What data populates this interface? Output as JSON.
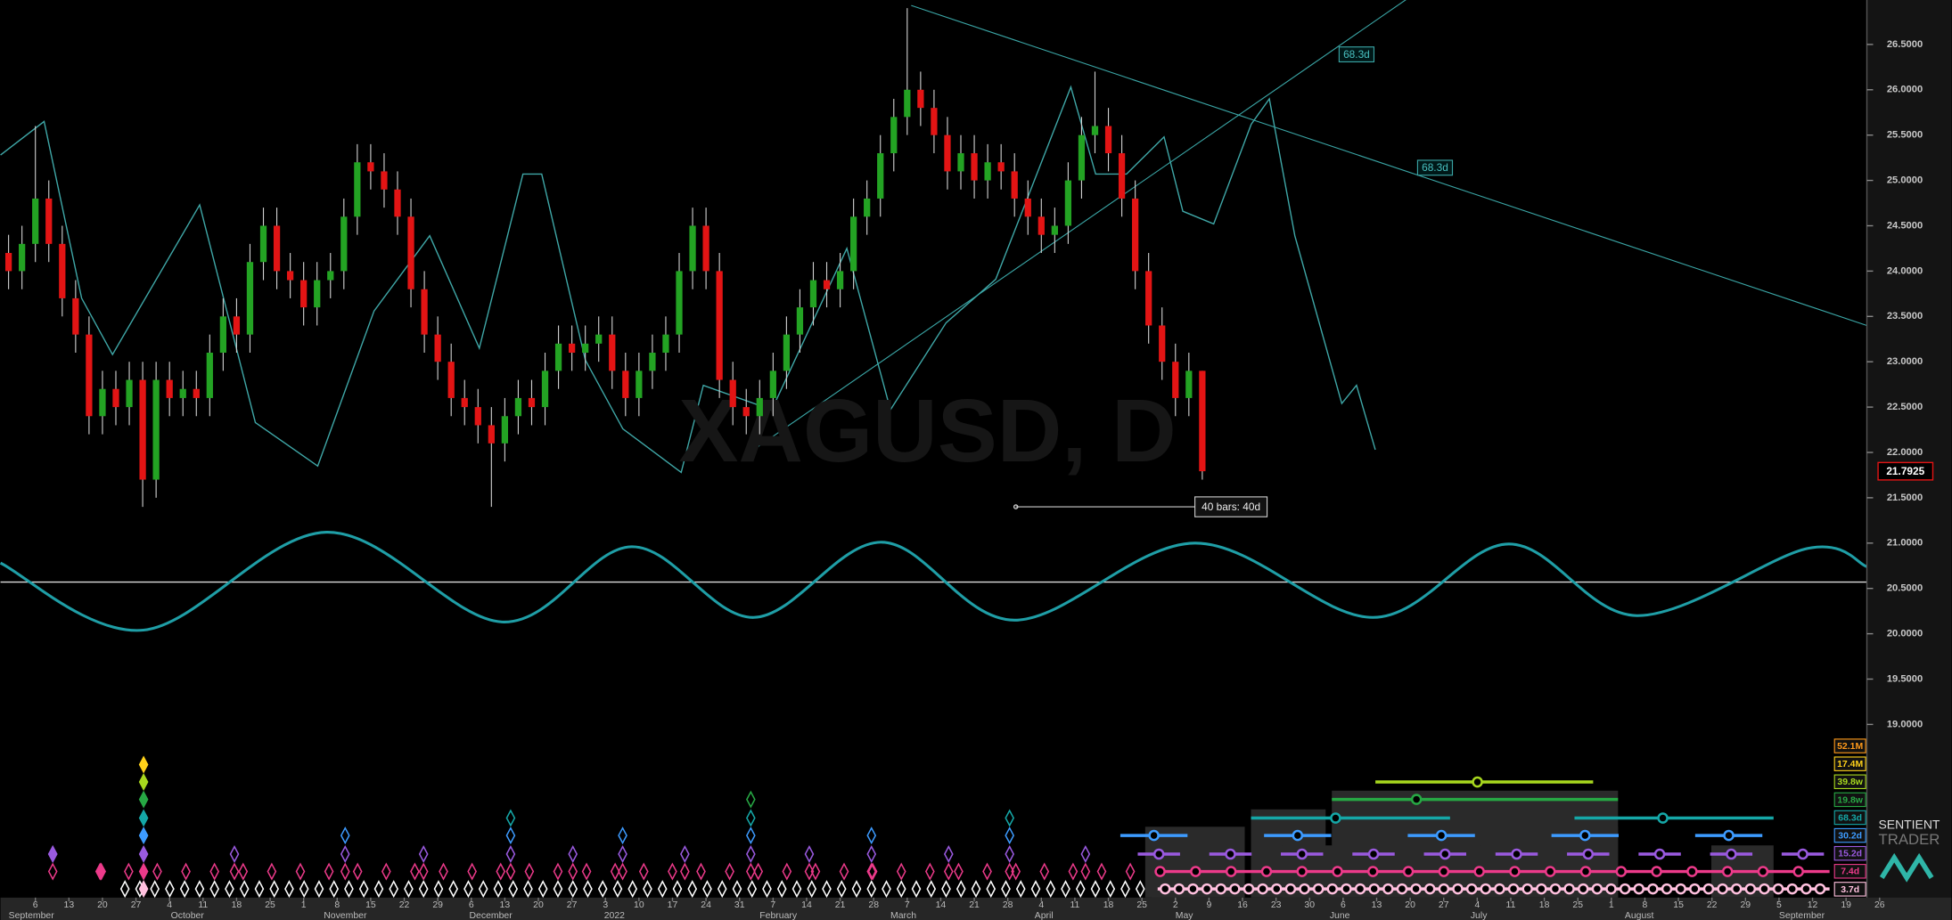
{
  "chart_data": {
    "type": "candlestick",
    "title": "XAGUSD, D",
    "up_color": "#23a323",
    "down_color": "#e31414",
    "x": [
      -4,
      -2,
      0,
      2,
      4,
      6,
      8,
      10,
      12,
      14,
      16,
      18,
      20,
      22,
      24,
      26,
      28,
      30,
      32,
      34,
      36,
      38,
      40,
      42,
      44,
      46,
      48,
      50,
      52,
      54,
      56,
      58,
      60,
      62,
      64,
      66,
      68,
      70,
      72,
      74,
      76,
      78,
      80,
      82,
      84,
      86,
      88,
      90,
      92,
      94,
      96,
      98,
      100,
      102,
      104,
      106,
      108,
      110,
      112,
      114,
      116,
      118,
      120,
      122,
      124,
      126,
      128,
      130,
      132,
      134,
      136,
      138,
      140,
      142,
      144,
      146,
      148,
      150,
      152,
      154,
      156,
      158,
      160,
      162,
      164,
      166,
      168,
      170,
      172,
      174
    ],
    "open": [
      24.2,
      24.0,
      24.3,
      24.8,
      24.3,
      23.7,
      23.3,
      22.4,
      22.7,
      22.5,
      22.8,
      21.7,
      22.8,
      22.6,
      22.7,
      22.6,
      23.1,
      23.5,
      23.3,
      24.1,
      24.5,
      24.0,
      23.9,
      23.6,
      23.9,
      24.0,
      24.6,
      25.2,
      25.1,
      24.9,
      24.6,
      23.8,
      23.3,
      23.0,
      22.6,
      22.5,
      22.3,
      22.1,
      22.4,
      22.6,
      22.5,
      22.9,
      23.2,
      23.1,
      23.2,
      23.3,
      22.9,
      22.6,
      22.9,
      23.1,
      23.3,
      24.0,
      24.5,
      24.0,
      22.8,
      22.5,
      22.4,
      22.6,
      22.9,
      23.3,
      23.6,
      23.9,
      23.8,
      24.0,
      24.6,
      24.8,
      25.3,
      25.7,
      26.0,
      25.8,
      25.5,
      25.1,
      25.3,
      25.0,
      25.2,
      25.1,
      24.8,
      24.6,
      24.4,
      24.5,
      25.0,
      25.5,
      25.6,
      25.3,
      24.8,
      24.0,
      23.4,
      23.0,
      22.6,
      22.9
    ],
    "high": [
      24.4,
      24.5,
      25.6,
      25.0,
      24.5,
      23.9,
      23.5,
      22.9,
      22.9,
      23.0,
      23.0,
      23.0,
      23.0,
      22.9,
      22.9,
      23.3,
      23.7,
      23.7,
      24.3,
      24.7,
      24.7,
      24.2,
      24.1,
      24.1,
      24.2,
      24.8,
      25.4,
      25.4,
      25.3,
      25.1,
      24.8,
      24.0,
      23.5,
      23.2,
      22.8,
      22.7,
      22.5,
      22.6,
      22.8,
      22.8,
      23.1,
      23.4,
      23.4,
      23.4,
      23.5,
      23.5,
      23.1,
      23.1,
      23.3,
      23.5,
      24.2,
      24.7,
      24.7,
      24.2,
      23.0,
      22.7,
      22.8,
      23.1,
      23.5,
      23.8,
      24.1,
      24.1,
      24.2,
      24.8,
      25.0,
      25.5,
      25.9,
      26.9,
      26.2,
      26.0,
      25.7,
      25.5,
      25.5,
      25.4,
      25.4,
      25.3,
      25.0,
      24.8,
      24.7,
      25.2,
      25.7,
      26.2,
      25.8,
      25.5,
      25.0,
      24.2,
      23.6,
      23.2,
      23.1,
      22.9
    ],
    "low": [
      23.8,
      23.8,
      24.1,
      24.1,
      23.5,
      23.1,
      22.2,
      22.2,
      22.3,
      22.3,
      21.4,
      21.5,
      22.4,
      22.4,
      22.4,
      22.4,
      22.9,
      23.1,
      23.1,
      23.9,
      23.8,
      23.7,
      23.4,
      23.4,
      23.7,
      23.8,
      24.4,
      24.9,
      24.7,
      24.4,
      23.6,
      23.1,
      22.8,
      22.4,
      22.3,
      22.1,
      21.4,
      21.9,
      22.2,
      22.3,
      22.3,
      22.7,
      22.9,
      22.9,
      23.0,
      22.7,
      22.4,
      22.4,
      22.7,
      22.9,
      23.1,
      23.8,
      23.8,
      22.6,
      22.3,
      22.2,
      22.2,
      22.4,
      22.7,
      23.1,
      23.4,
      23.6,
      23.6,
      23.8,
      24.4,
      24.6,
      25.1,
      25.5,
      25.6,
      25.3,
      24.9,
      24.9,
      24.8,
      24.8,
      24.9,
      24.6,
      24.4,
      24.2,
      24.2,
      24.3,
      24.8,
      25.3,
      25.1,
      24.6,
      23.8,
      23.2,
      22.8,
      22.4,
      22.4,
      21.7
    ],
    "close": [
      24.0,
      24.3,
      24.8,
      24.3,
      23.7,
      23.3,
      22.4,
      22.7,
      22.5,
      22.8,
      21.7,
      22.8,
      22.6,
      22.7,
      22.6,
      23.1,
      23.5,
      23.3,
      24.1,
      24.5,
      24.0,
      23.9,
      23.6,
      23.9,
      24.0,
      24.6,
      25.2,
      25.1,
      24.9,
      24.6,
      23.8,
      23.3,
      23.0,
      22.6,
      22.5,
      22.3,
      22.1,
      22.4,
      22.6,
      22.5,
      22.9,
      23.2,
      23.1,
      23.2,
      23.3,
      22.9,
      22.6,
      22.9,
      23.1,
      23.3,
      24.0,
      24.5,
      24.0,
      22.8,
      22.5,
      22.4,
      22.6,
      22.9,
      23.3,
      23.6,
      23.9,
      23.8,
      24.0,
      24.6,
      24.8,
      25.3,
      25.7,
      26.0,
      25.8,
      25.5,
      25.1,
      25.3,
      25.0,
      25.2,
      25.1,
      24.8,
      24.6,
      24.4,
      24.5,
      25.0,
      25.5,
      25.6,
      25.3,
      24.8,
      24.0,
      23.4,
      23.0,
      22.6,
      22.9,
      21.7925
    ],
    "xlim": [
      -5.2,
      273.1
    ],
    "ylim": [
      16.98,
      26.99
    ],
    "yticks": [
      {
        "value": 26.5,
        "label": "26.5000"
      },
      {
        "value": 26,
        "label": "26.0000"
      },
      {
        "value": 25.5,
        "label": "25.5000"
      },
      {
        "value": 25,
        "label": "25.0000"
      },
      {
        "value": 24.5,
        "label": "24.5000"
      },
      {
        "value": 24,
        "label": "24.0000"
      },
      {
        "value": 23.5,
        "label": "23.5000"
      },
      {
        "value": 23,
        "label": "23.0000"
      },
      {
        "value": 22.5,
        "label": "22.5000"
      },
      {
        "value": 22,
        "label": "22.0000"
      },
      {
        "value": 21.5,
        "label": "21.5000"
      },
      {
        "value": 21,
        "label": "21.0000"
      },
      {
        "value": 20.5,
        "label": "20.5000"
      },
      {
        "value": 20,
        "label": "20.0000"
      },
      {
        "value": 19.5,
        "label": "19.5000"
      },
      {
        "value": 19,
        "label": "19.0000"
      }
    ],
    "xticks": [
      {
        "value": 0,
        "label": "6"
      },
      {
        "value": 5,
        "label": "13"
      },
      {
        "value": 10,
        "label": "20"
      },
      {
        "value": 15,
        "label": "27"
      },
      {
        "value": 20,
        "label": "4"
      },
      {
        "value": 25,
        "label": "11"
      },
      {
        "value": 30,
        "label": "18"
      },
      {
        "value": 35,
        "label": "25"
      },
      {
        "value": 40,
        "label": "1"
      },
      {
        "value": 45,
        "label": "8"
      },
      {
        "value": 50,
        "label": "15"
      },
      {
        "value": 55,
        "label": "22"
      },
      {
        "value": 60,
        "label": "29"
      },
      {
        "value": 65,
        "label": "6"
      },
      {
        "value": 70,
        "label": "13"
      },
      {
        "value": 75,
        "label": "20"
      },
      {
        "value": 80,
        "label": "27"
      },
      {
        "value": 85,
        "label": "3"
      },
      {
        "value": 90,
        "label": "10"
      },
      {
        "value": 95,
        "label": "17"
      },
      {
        "value": 100,
        "label": "24"
      },
      {
        "value": 105,
        "label": "31"
      },
      {
        "value": 110,
        "label": "7"
      },
      {
        "value": 115,
        "label": "14"
      },
      {
        "value": 120,
        "label": "21"
      },
      {
        "value": 125,
        "label": "28"
      },
      {
        "value": 130,
        "label": "7"
      },
      {
        "value": 135,
        "label": "14"
      },
      {
        "value": 140,
        "label": "21"
      },
      {
        "value": 145,
        "label": "28"
      },
      {
        "value": 150,
        "label": "4"
      },
      {
        "value": 155,
        "label": "11"
      },
      {
        "value": 160,
        "label": "18"
      },
      {
        "value": 165,
        "label": "25"
      },
      {
        "value": 170,
        "label": "2"
      },
      {
        "value": 175,
        "label": "9"
      },
      {
        "value": 180,
        "label": "16"
      },
      {
        "value": 185,
        "label": "23"
      },
      {
        "value": 190,
        "label": "30"
      },
      {
        "value": 195,
        "label": "6"
      },
      {
        "value": 200,
        "label": "13"
      },
      {
        "value": 205,
        "label": "20"
      },
      {
        "value": 210,
        "label": "27"
      },
      {
        "value": 215,
        "label": "4"
      },
      {
        "value": 220,
        "label": "11"
      },
      {
        "value": 225,
        "label": "18"
      },
      {
        "value": 230,
        "label": "25"
      },
      {
        "value": 235,
        "label": "1"
      },
      {
        "value": 240,
        "label": "8"
      },
      {
        "value": 245,
        "label": "15"
      },
      {
        "value": 250,
        "label": "22"
      },
      {
        "value": 255,
        "label": "29"
      },
      {
        "value": 260,
        "label": "5"
      },
      {
        "value": 265,
        "label": "12"
      },
      {
        "value": 270,
        "label": "19"
      },
      {
        "value": 275,
        "label": "26"
      }
    ],
    "month_labels": [
      {
        "value": -4,
        "label": "September"
      },
      {
        "value": 20.2,
        "label": "October"
      },
      {
        "value": 43,
        "label": "November"
      },
      {
        "value": 64.7,
        "label": "December"
      },
      {
        "value": 84.8,
        "label": "2022"
      },
      {
        "value": 108,
        "label": "February"
      },
      {
        "value": 127.5,
        "label": "March"
      },
      {
        "value": 149,
        "label": "April"
      },
      {
        "value": 170,
        "label": "May"
      },
      {
        "value": 193,
        "label": "June"
      },
      {
        "value": 214,
        "label": "July"
      },
      {
        "value": 237,
        "label": "August"
      },
      {
        "value": 260,
        "label": "September"
      }
    ],
    "oscillator": {
      "color": "#3fa7a7",
      "x": [
        -5.2,
        1.3,
        6.9,
        11.5,
        24.5,
        32.8,
        42.1,
        50.5,
        58.8,
        66.2,
        72.7,
        75.5,
        82.0,
        87.6,
        96.3,
        99.6,
        109.8,
        121.0,
        127.5,
        135.8,
        143.2,
        147.9,
        154.4,
        158.1,
        162.7,
        168.3,
        171.1,
        175.7,
        181.3,
        184.0,
        187.8,
        194.8,
        197.0,
        199.8
      ],
      "values": [
        25.28,
        25.65,
        23.7,
        23.08,
        24.73,
        22.33,
        21.85,
        23.56,
        24.39,
        23.15,
        25.07,
        25.07,
        23.02,
        22.26,
        21.78,
        22.74,
        22.47,
        24.25,
        22.47,
        23.43,
        23.91,
        24.8,
        26.03,
        25.07,
        25.07,
        25.48,
        24.66,
        24.52,
        25.62,
        25.9,
        24.39,
        22.54,
        22.74,
        22.03
      ]
    },
    "cycle_wave": {
      "color": "#1f9ea6",
      "x": [
        -5.2,
        16.1,
        43.4,
        69.6,
        88.9,
        107.1,
        126.2,
        146.0,
        172.9,
        199.4,
        219.7,
        238.8,
        264.2,
        273.1
      ],
      "values": [
        20.78,
        20.04,
        21.12,
        20.13,
        20.96,
        20.18,
        21.01,
        20.15,
        21.0,
        20.18,
        20.99,
        20.2,
        20.94,
        20.74
      ]
    },
    "midline": 20.57,
    "trend_lines": [
      {
        "x": [
          130.6,
          273.1
        ],
        "values": [
          26.93,
          23.4
        ]
      },
      {
        "x": [
          107.1,
          204.5
        ],
        "values": [
          22.03,
          27.0
        ]
      }
    ],
    "trend_labels": [
      {
        "label": "68.3d",
        "x": 197,
        "value": 26.39
      },
      {
        "label": "68.3d",
        "x": 208.7,
        "value": 25.14
      }
    ],
    "annotation": {
      "text": "40 bars: 40d",
      "x": [
        146.2,
        172.9
      ],
      "value": 21.4
    },
    "cycles": [
      {
        "label": "52.1M",
        "color": "#ff9a1a"
      },
      {
        "label": "17.4M",
        "color": "#ffd21a"
      },
      {
        "label": "39.8w",
        "color": "#a8d81e"
      },
      {
        "label": "19.8w",
        "color": "#27a844"
      },
      {
        "label": "68.3d",
        "color": "#15a7a7"
      },
      {
        "label": "30.2d",
        "color": "#3d9bff"
      },
      {
        "label": "15.2d",
        "color": "#9a5ae0"
      },
      {
        "label": "7.4d",
        "color": "#ec3a8a"
      },
      {
        "label": "3.7d",
        "color": "#ffc0de"
      }
    ]
  },
  "logo": {
    "line1": "SENTIENT",
    "line2": "TRADER"
  }
}
